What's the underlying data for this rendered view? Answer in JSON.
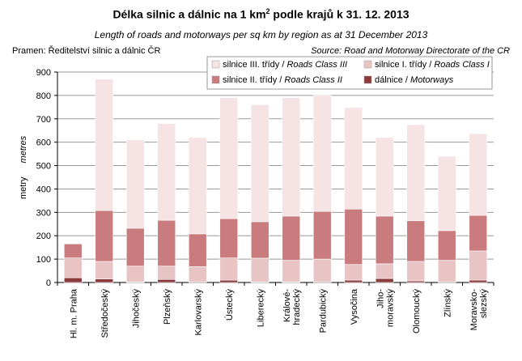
{
  "title_cs_pre": "Délka silnic a dálnic na 1 km",
  "title_cs_sup": "2",
  "title_cs_post": " podle krajů k 31. 12. 2013",
  "title_en": "Length of roads and motorways per sq km by region as at 31 December 2013",
  "source_cs": "Pramen: Ředitelství silnic a dálnic ČR",
  "source_en": "Source: Road and Motorway Directorate of the CR",
  "colors": {
    "motorways": "#8b3a3e",
    "class1": "#e9c4c4",
    "class2": "#c97b7e",
    "class3": "#f6e3e3"
  },
  "chart_data": {
    "type": "bar",
    "stacked": true,
    "ylim": [
      0,
      900
    ],
    "yticks": [
      0,
      100,
      200,
      300,
      400,
      500,
      600,
      700,
      800,
      900
    ],
    "ylabel_cs": "metry",
    "ylabel_en": "metres",
    "grid": true,
    "legend_position": "top-right",
    "categories": [
      [
        "Hl. m. Praha"
      ],
      [
        "Středočeský"
      ],
      [
        "Jihočeský"
      ],
      [
        "Plzeňský"
      ],
      [
        "Karlovarský"
      ],
      [
        "Ústecký"
      ],
      [
        "Liberecký"
      ],
      [
        "Králové-",
        "hradecký"
      ],
      [
        "Pardubický"
      ],
      [
        "Vysočina"
      ],
      [
        "Jiho-",
        "moravský"
      ],
      [
        "Olomoucký"
      ],
      [
        "Zlínský"
      ],
      [
        "Moravsko-",
        "slezský"
      ]
    ],
    "series": [
      {
        "key": "motorways",
        "name": "dálnice / Motorways",
        "values": [
          20,
          15,
          2,
          13,
          3,
          10,
          2,
          2,
          3,
          10,
          17,
          7,
          3,
          10
        ]
      },
      {
        "key": "class1",
        "name": "silnice I. třídy / Roads Class I",
        "values": [
          85,
          75,
          68,
          57,
          65,
          95,
          102,
          93,
          97,
          67,
          63,
          83,
          92,
          125
        ]
      },
      {
        "key": "class2",
        "name": "silnice II. třídy / Roads Class II",
        "values": [
          60,
          218,
          162,
          196,
          140,
          168,
          156,
          189,
          204,
          237,
          204,
          174,
          127,
          152
        ]
      },
      {
        "key": "class3",
        "name": "silnice III. třídy / Roads Class III",
        "values": [
          0,
          562,
          378,
          414,
          412,
          517,
          500,
          506,
          496,
          434,
          336,
          411,
          318,
          349
        ]
      }
    ],
    "totals": [
      165,
      870,
      610,
      680,
      620,
      790,
      760,
      790,
      800,
      748,
      620,
      675,
      540,
      636
    ]
  },
  "legend_items": [
    {
      "key": "class3",
      "cs": "silnice III. třídy",
      "en": "Roads Class III"
    },
    {
      "key": "class1",
      "cs": "silnice I. třídy",
      "en": "Roads Class I"
    },
    {
      "key": "class2",
      "cs": "silnice II. třídy",
      "en": "Roads Class II"
    },
    {
      "key": "motorways",
      "cs": "dálnice",
      "en": "Motorways"
    }
  ]
}
